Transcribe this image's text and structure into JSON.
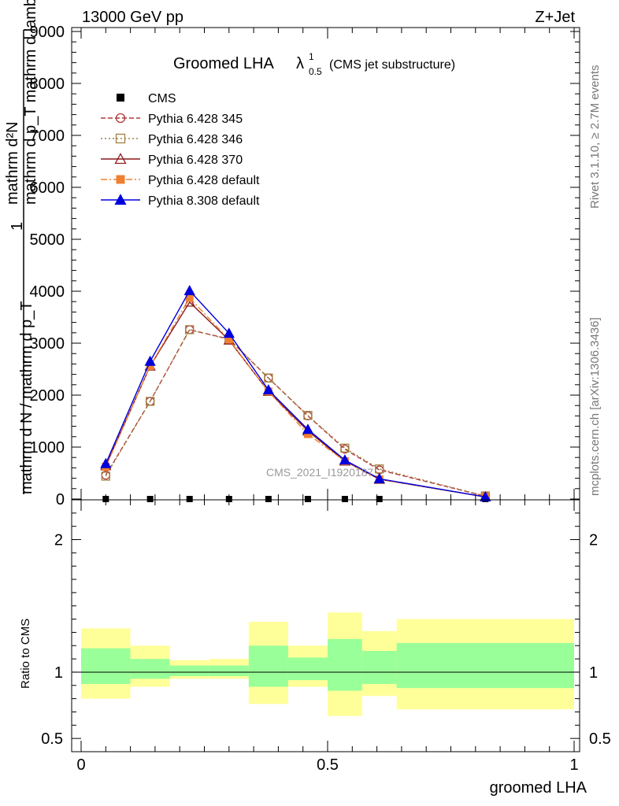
{
  "header": {
    "left": "13000 GeV pp",
    "right": "Z+Jet"
  },
  "title": {
    "main": "Groomed LHA",
    "lambda": "λ",
    "sup": "1",
    "sub": "0.5",
    "suffix": "(CMS jet substructure)"
  },
  "side_labels": {
    "rivet": "Rivet 3.1.10, ≥ 2.7M events",
    "mcplots": "mcplots.cern.ch [arXiv:1306.3436]"
  },
  "watermark": "CMS_2021_I1920187",
  "ylabel_top": {
    "num": "mathrm d²N",
    "den": "mathrm d p_T mathrm d lambda",
    "num2": "1",
    "den2": "mathrm d N / mathrm d p_T"
  },
  "ylabel_bottom": "Ratio to CMS",
  "xlabel": "groomed LHA",
  "chart_data": [
    {
      "type": "line",
      "panel": "main",
      "x": [
        0.05,
        0.14,
        0.22,
        0.3,
        0.38,
        0.46,
        0.535,
        0.605,
        0.82
      ],
      "xlim": [
        0,
        1
      ],
      "ylim": [
        0,
        9000
      ],
      "y_ticks": [
        "0",
        "1000",
        "2000",
        "3000",
        "4000",
        "5000",
        "6000",
        "7000",
        "8000",
        "9000"
      ],
      "legend_placement": "top-left",
      "series": [
        {
          "name": "CMS",
          "marker": "square-filled",
          "color": "#000000",
          "values": [
            0,
            0,
            0,
            0,
            0,
            0,
            0,
            0,
            0
          ]
        },
        {
          "name": "Pythia 6.428 345",
          "marker": "circle-open",
          "color": "#b03a3a",
          "dash": "6,3",
          "values": [
            460,
            1880,
            3260,
            3080,
            2330,
            1600,
            960,
            560,
            55
          ]
        },
        {
          "name": "Pythia 6.428 346",
          "marker": "square-open",
          "color": "#a08040",
          "dash": "2,3",
          "values": [
            440,
            1880,
            3260,
            3070,
            2330,
            1610,
            980,
            580,
            60
          ]
        },
        {
          "name": "Pythia 6.428 370",
          "marker": "triangle-open",
          "color": "#8b1a1a",
          "dash": "",
          "values": [
            640,
            2560,
            3790,
            3060,
            2070,
            1310,
            730,
            380,
            40
          ]
        },
        {
          "name": "Pythia 6.428 default",
          "marker": "square-filled",
          "color": "#f08030",
          "dash": "8,3,2,3",
          "values": [
            620,
            2560,
            3870,
            3070,
            2070,
            1250,
            730,
            380,
            40
          ]
        },
        {
          "name": "Pythia 8.308 default",
          "marker": "triangle-filled",
          "color": "#0000dd",
          "dash": "",
          "values": [
            680,
            2650,
            4010,
            3190,
            2100,
            1340,
            750,
            390,
            40
          ]
        }
      ]
    },
    {
      "type": "area",
      "panel": "ratio",
      "xlim": [
        0,
        1
      ],
      "ylim": [
        0.4,
        2.3
      ],
      "y_ticks": [
        "0.5",
        "1",
        "2"
      ],
      "x_ticks": [
        "0",
        "0.5",
        "1"
      ],
      "reference_line": 1,
      "bins": [
        {
          "x_low": 0.0,
          "x_high": 0.1,
          "yellow": [
            0.8,
            1.33
          ],
          "green": [
            0.91,
            1.18
          ]
        },
        {
          "x_low": 0.1,
          "x_high": 0.18,
          "yellow": [
            0.89,
            1.2
          ],
          "green": [
            0.95,
            1.1
          ]
        },
        {
          "x_low": 0.18,
          "x_high": 0.26,
          "yellow": [
            0.95,
            1.09
          ],
          "green": [
            0.97,
            1.05
          ]
        },
        {
          "x_low": 0.26,
          "x_high": 0.34,
          "yellow": [
            0.95,
            1.1
          ],
          "green": [
            0.97,
            1.05
          ]
        },
        {
          "x_low": 0.34,
          "x_high": 0.42,
          "yellow": [
            0.76,
            1.38
          ],
          "green": [
            0.89,
            1.2
          ]
        },
        {
          "x_low": 0.42,
          "x_high": 0.5,
          "yellow": [
            0.89,
            1.2
          ],
          "green": [
            0.94,
            1.11
          ]
        },
        {
          "x_low": 0.5,
          "x_high": 0.57,
          "yellow": [
            0.67,
            1.45
          ],
          "green": [
            0.86,
            1.25
          ]
        },
        {
          "x_low": 0.57,
          "x_high": 0.64,
          "yellow": [
            0.82,
            1.31
          ],
          "green": [
            0.91,
            1.16
          ]
        },
        {
          "x_low": 0.64,
          "x_high": 1.0,
          "yellow": [
            0.72,
            1.4
          ],
          "green": [
            0.88,
            1.22
          ]
        }
      ]
    }
  ],
  "colors": {
    "band_yellow": "#ffff99",
    "band_green": "#99ff99"
  }
}
